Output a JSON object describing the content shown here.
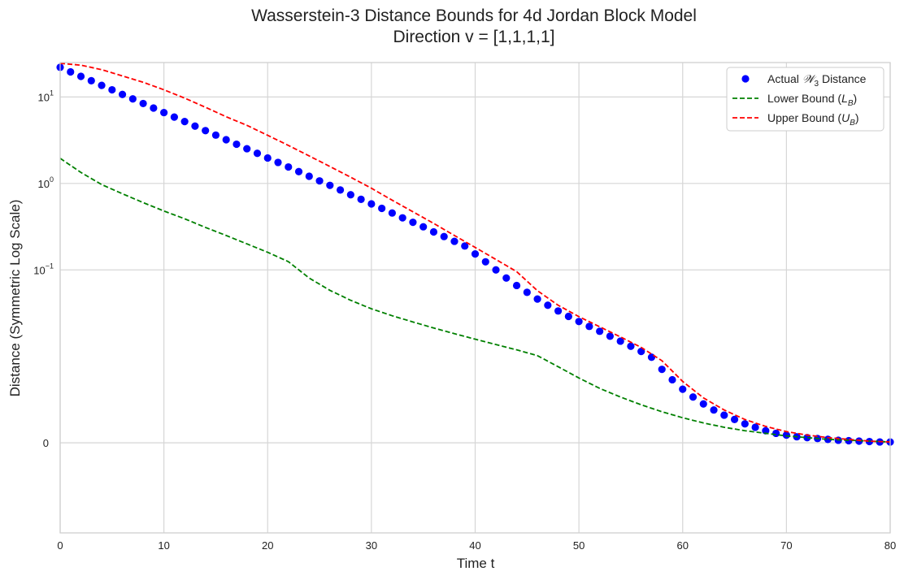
{
  "chart_data": {
    "type": "line",
    "title": "Wasserstein-3 Distance Bounds for 4d Jordan Block Model",
    "subtitle": "Direction v = [1,1,1,1]",
    "xlabel": "Time t",
    "ylabel": "Distance (Symmetric Log Scale)",
    "xlim": [
      0,
      80
    ],
    "yscale": "symlog",
    "ylim": [
      -0.011,
      25
    ],
    "x_ticks": [
      "0",
      "10",
      "20",
      "30",
      "40",
      "50",
      "60",
      "70",
      "80"
    ],
    "y_ticks": [
      {
        "value": 0,
        "label": "0",
        "base": "",
        "exp": ""
      },
      {
        "value": 0.1,
        "label": "10^-1",
        "base": "10",
        "exp": "−1"
      },
      {
        "value": 1,
        "label": "10^0",
        "base": "10",
        "exp": "0"
      },
      {
        "value": 10,
        "label": "10^1",
        "base": "10",
        "exp": "1"
      }
    ],
    "grid": true,
    "legend_position": "top-right",
    "legend": [
      "Actual 𝒲3 Distance",
      "Lower Bound (LB)",
      "Upper Bound (UB)"
    ],
    "series": [
      {
        "name": "Actual 𝒲3 Distance",
        "style": "markers",
        "color": "#0000ff",
        "x": [
          0,
          1,
          2,
          3,
          4,
          5,
          6,
          7,
          8,
          9,
          10,
          11,
          12,
          13,
          14,
          15,
          16,
          17,
          18,
          19,
          20,
          21,
          22,
          23,
          24,
          25,
          26,
          27,
          28,
          29,
          30,
          31,
          32,
          33,
          34,
          35,
          36,
          37,
          38,
          39,
          40,
          41,
          42,
          43,
          44,
          45,
          46,
          47,
          48,
          49,
          50,
          51,
          52,
          53,
          54,
          55,
          56,
          57,
          58,
          59,
          60,
          61,
          62,
          63,
          64,
          65,
          66,
          67,
          68,
          69,
          70,
          71,
          72,
          73,
          74,
          75,
          76,
          77,
          78,
          79,
          80
        ],
        "y": [
          22.0,
          19.5,
          17.3,
          15.4,
          13.6,
          12.1,
          10.7,
          9.5,
          8.4,
          7.45,
          6.6,
          5.85,
          5.2,
          4.6,
          4.08,
          3.62,
          3.2,
          2.84,
          2.52,
          2.23,
          1.97,
          1.75,
          1.55,
          1.37,
          1.21,
          1.07,
          0.95,
          0.84,
          0.74,
          0.655,
          0.58,
          0.515,
          0.455,
          0.4,
          0.355,
          0.315,
          0.275,
          0.243,
          0.214,
          0.189,
          0.153,
          0.124,
          0.1,
          0.0805,
          0.066,
          0.055,
          0.046,
          0.039,
          0.0335,
          0.029,
          0.0253,
          0.0222,
          0.0195,
          0.0171,
          0.015,
          0.0131,
          0.0114,
          0.0099,
          0.0085,
          0.0073,
          0.0062,
          0.0053,
          0.0045,
          0.0038,
          0.0032,
          0.0027,
          0.0022,
          0.0018,
          0.0014,
          0.0011,
          0.0009,
          0.0007,
          0.0006,
          0.0005,
          0.0004,
          0.0003,
          0.00025,
          0.0002,
          0.00015,
          0.0001,
          0.0001
        ]
      },
      {
        "name": "Lower Bound (LB)",
        "style": "dashed",
        "color": "#008000",
        "x": [
          0,
          2,
          4,
          6,
          8,
          10,
          12,
          14,
          16,
          18,
          20,
          22,
          24,
          26,
          28,
          30,
          32,
          34,
          36,
          38,
          40,
          42,
          44,
          46,
          48,
          50,
          52,
          54,
          56,
          58,
          60,
          62,
          64,
          66,
          68,
          70,
          72,
          74,
          76,
          78,
          80
        ],
        "y": [
          1.95,
          1.34,
          0.97,
          0.76,
          0.6,
          0.48,
          0.39,
          0.31,
          0.25,
          0.2,
          0.16,
          0.1245,
          0.0805,
          0.058,
          0.0445,
          0.0355,
          0.0295,
          0.025,
          0.0213,
          0.0183,
          0.0158,
          0.0137,
          0.0119,
          0.0102,
          0.0088,
          0.0075,
          0.0063,
          0.0053,
          0.0044,
          0.0036,
          0.0029,
          0.0023,
          0.0018,
          0.0014,
          0.0011,
          0.0008,
          0.0006,
          0.0004,
          0.0003,
          0.0002,
          0.0001
        ]
      },
      {
        "name": "Upper Bound (UB)",
        "style": "dashed",
        "color": "#ff0000",
        "x": [
          0,
          2,
          4,
          6,
          8,
          10,
          12,
          14,
          16,
          18,
          20,
          22,
          24,
          26,
          28,
          30,
          32,
          34,
          36,
          38,
          40,
          42,
          44,
          46,
          48,
          50,
          52,
          54,
          56,
          58,
          60,
          62,
          64,
          66,
          68,
          70,
          72,
          74,
          76,
          78,
          80
        ],
        "y": [
          24.5,
          23.3,
          20.7,
          17.5,
          14.8,
          12.1,
          9.7,
          7.6,
          5.9,
          4.7,
          3.6,
          2.75,
          2.08,
          1.57,
          1.18,
          0.88,
          0.64,
          0.47,
          0.345,
          0.25,
          0.182,
          0.132,
          0.0955,
          0.0575,
          0.039,
          0.0288,
          0.022,
          0.0168,
          0.0127,
          0.0095,
          0.0071,
          0.0052,
          0.0038,
          0.0027,
          0.0019,
          0.0013,
          0.0009,
          0.0006,
          0.0004,
          0.0002,
          0.0001
        ]
      }
    ]
  }
}
